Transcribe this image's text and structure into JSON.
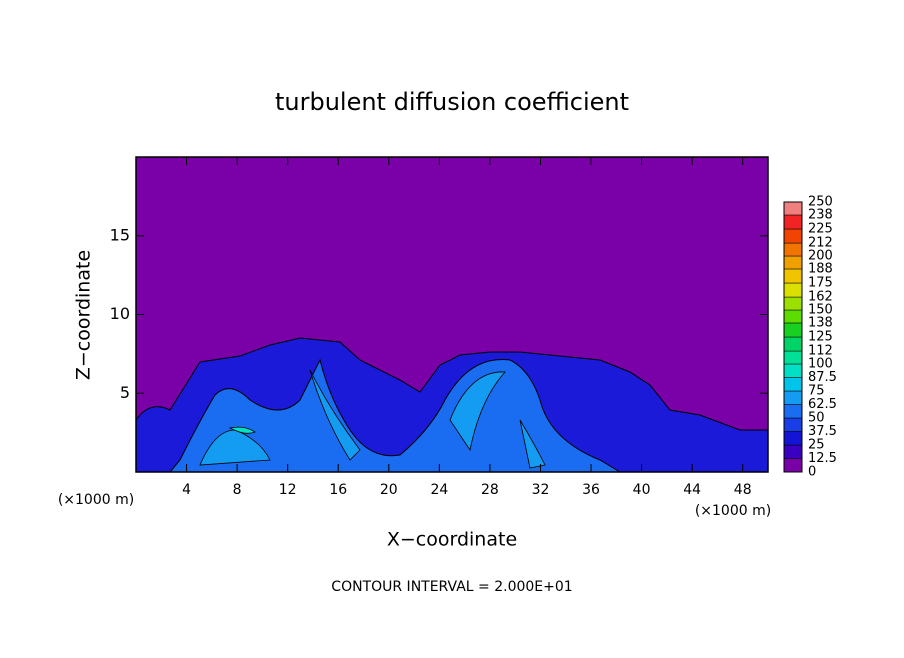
{
  "chart_data": {
    "type": "contour",
    "title": "turbulent diffusion coefficient",
    "xlabel": "X−coordinate",
    "ylabel": "Z−coordinate",
    "xunit": "(×1000 m)",
    "xunit2": "(×1000 m)",
    "footnote": "CONTOUR INTERVAL = 2.000E+01",
    "xlim": [
      0,
      50
    ],
    "xticks": [
      4,
      8,
      12,
      16,
      20,
      24,
      28,
      32,
      36,
      40,
      44,
      48
    ],
    "ylim": [
      0,
      20
    ],
    "yticks": [
      5,
      10,
      15
    ],
    "colorbar": {
      "lim": [
        0,
        250
      ],
      "ticks": [
        0,
        12.5,
        25,
        37.5,
        50,
        62.5,
        75,
        87.5,
        100,
        112,
        125,
        138,
        150,
        162,
        175,
        188,
        200,
        212,
        225,
        238,
        250
      ],
      "colors": [
        "#7a00a8",
        "#3a00c0",
        "#1414d4",
        "#1a3ee6",
        "#1a6cf0",
        "#149cf2",
        "#00c4ea",
        "#00e0c4",
        "#00e096",
        "#00d466",
        "#18d020",
        "#5cdc00",
        "#9ce000",
        "#dce000",
        "#f0c400",
        "#f0a000",
        "#f07400",
        "#f04400",
        "#f02424",
        "#f08080"
      ]
    }
  }
}
